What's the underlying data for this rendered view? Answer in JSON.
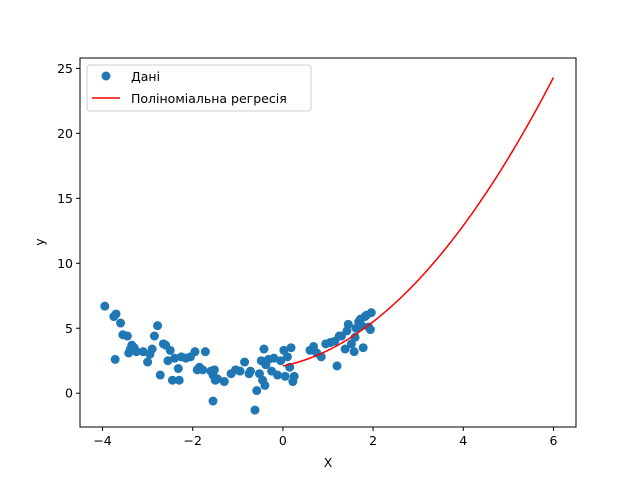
{
  "chart_data": {
    "type": "scatter",
    "xlabel": "X",
    "ylabel": "y",
    "xlim": [
      -4.5,
      6.5
    ],
    "ylim": [
      -2.6,
      25.8
    ],
    "xticks": [
      -4,
      -2,
      0,
      2,
      4,
      6
    ],
    "yticks": [
      0,
      5,
      10,
      15,
      20,
      25
    ],
    "grid": false,
    "legend_position": "top-left",
    "series": [
      {
        "name": "Дані",
        "kind": "scatter",
        "color": "#1f77b4",
        "points": [
          [
            -3.95,
            6.7
          ],
          [
            -3.75,
            5.9
          ],
          [
            -3.7,
            6.1
          ],
          [
            -3.72,
            2.6
          ],
          [
            -3.6,
            5.4
          ],
          [
            -3.55,
            4.5
          ],
          [
            -3.45,
            4.4
          ],
          [
            -3.42,
            3.1
          ],
          [
            -3.38,
            3.4
          ],
          [
            -3.35,
            3.7
          ],
          [
            -3.3,
            3.5
          ],
          [
            -3.25,
            3.2
          ],
          [
            -3.1,
            3.2
          ],
          [
            -3.0,
            2.4
          ],
          [
            -2.95,
            3.0
          ],
          [
            -2.9,
            3.4
          ],
          [
            -2.85,
            4.4
          ],
          [
            -2.78,
            5.2
          ],
          [
            -2.72,
            1.4
          ],
          [
            -2.65,
            3.8
          ],
          [
            -2.6,
            3.7
          ],
          [
            -2.55,
            2.5
          ],
          [
            -2.5,
            3.3
          ],
          [
            -2.45,
            1.0
          ],
          [
            -2.4,
            2.7
          ],
          [
            -2.32,
            1.9
          ],
          [
            -2.3,
            1.0
          ],
          [
            -2.25,
            2.8
          ],
          [
            -2.15,
            2.7
          ],
          [
            -2.05,
            2.8
          ],
          [
            -1.95,
            3.2
          ],
          [
            -1.9,
            1.8
          ],
          [
            -1.85,
            2.0
          ],
          [
            -1.78,
            1.8
          ],
          [
            -1.72,
            3.2
          ],
          [
            -1.6,
            1.7
          ],
          [
            -1.55,
            1.4
          ],
          [
            -1.55,
            -0.6
          ],
          [
            -1.52,
            1.8
          ],
          [
            -1.5,
            1.0
          ],
          [
            -1.45,
            1.1
          ],
          [
            -1.3,
            0.9
          ],
          [
            -1.15,
            1.5
          ],
          [
            -1.05,
            1.8
          ],
          [
            -0.95,
            1.7
          ],
          [
            -0.85,
            2.4
          ],
          [
            -0.75,
            1.5
          ],
          [
            -0.72,
            1.7
          ],
          [
            -0.62,
            -1.3
          ],
          [
            -0.58,
            0.2
          ],
          [
            -0.52,
            1.5
          ],
          [
            -0.48,
            2.5
          ],
          [
            -0.45,
            1.0
          ],
          [
            -0.42,
            3.4
          ],
          [
            -0.4,
            0.6
          ],
          [
            -0.38,
            2.2
          ],
          [
            -0.32,
            2.6
          ],
          [
            -0.25,
            1.7
          ],
          [
            -0.2,
            2.7
          ],
          [
            -0.12,
            1.4
          ],
          [
            -0.05,
            2.5
          ],
          [
            0.02,
            3.3
          ],
          [
            0.05,
            1.3
          ],
          [
            0.1,
            2.8
          ],
          [
            0.15,
            2.0
          ],
          [
            0.18,
            3.5
          ],
          [
            0.22,
            0.9
          ],
          [
            0.25,
            1.3
          ],
          [
            0.6,
            3.3
          ],
          [
            0.68,
            3.6
          ],
          [
            0.75,
            3.1
          ],
          [
            0.85,
            2.8
          ],
          [
            0.95,
            3.8
          ],
          [
            1.05,
            3.9
          ],
          [
            1.15,
            4.0
          ],
          [
            1.2,
            2.1
          ],
          [
            1.25,
            4.4
          ],
          [
            1.3,
            4.4
          ],
          [
            1.38,
            3.4
          ],
          [
            1.42,
            4.8
          ],
          [
            1.45,
            5.3
          ],
          [
            1.52,
            3.8
          ],
          [
            1.58,
            3.2
          ],
          [
            1.6,
            4.3
          ],
          [
            1.62,
            5.0
          ],
          [
            1.68,
            5.5
          ],
          [
            1.72,
            5.7
          ],
          [
            1.75,
            5.2
          ],
          [
            1.78,
            3.5
          ],
          [
            1.82,
            5.9
          ],
          [
            1.85,
            6.0
          ],
          [
            1.9,
            5.1
          ],
          [
            1.94,
            4.9
          ],
          [
            1.96,
            6.2
          ]
        ]
      },
      {
        "name": "Поліноміальна регресія",
        "kind": "line",
        "color": "#ff0000",
        "x_range": [
          0,
          6
        ],
        "coefficients": {
          "a": 0.5,
          "b": 0.7,
          "c": 2.1
        }
      }
    ]
  }
}
